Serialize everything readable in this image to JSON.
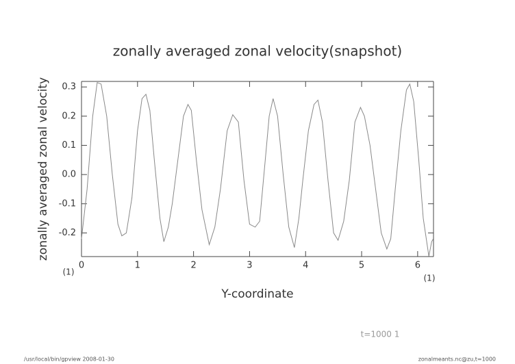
{
  "chart_data": {
    "type": "line",
    "title": "zonally averaged zonal velocity(snapshot)",
    "x_label": "Y-coordinate",
    "y_label": "zonally averaged zonal velocity",
    "x_unit_left": "(1)",
    "x_unit_right": "(1)",
    "annotation": "t=1000 1",
    "footer_left": "/usr/local/bin/gpview   2008-01-30",
    "footer_right": "zonalmeants.nc@zu,t=1000",
    "xlim": [
      0,
      6.283
    ],
    "ylim": [
      -0.281,
      0.319
    ],
    "xticks": [
      0,
      1,
      2,
      3,
      4,
      5,
      6
    ],
    "yticks": [
      -0.2,
      -0.1,
      {
        "value": 0,
        "label": "0.0"
      },
      0.1,
      0.2,
      0.3
    ],
    "series": [
      {
        "color": "#888888",
        "x": [
          0,
          0.1,
          0.2,
          0.28,
          0.35,
          0.45,
          0.55,
          0.65,
          0.72,
          0.8,
          0.9,
          1.0,
          1.08,
          1.15,
          1.22,
          1.3,
          1.4,
          1.47,
          1.55,
          1.62,
          1.72,
          1.82,
          1.9,
          1.96,
          2.05,
          2.15,
          2.28,
          2.38,
          2.48,
          2.6,
          2.7,
          2.8,
          2.9,
          3.0,
          3.1,
          3.18,
          3.28,
          3.35,
          3.42,
          3.5,
          3.6,
          3.7,
          3.8,
          3.88,
          3.95,
          4.05,
          4.15,
          4.22,
          4.3,
          4.4,
          4.5,
          4.58,
          4.68,
          4.78,
          4.88,
          4.98,
          5.05,
          5.15,
          5.25,
          5.35,
          5.45,
          5.52,
          5.6,
          5.7,
          5.8,
          5.86,
          5.93,
          6.02,
          6.1,
          6.2,
          6.25,
          6.28
        ],
        "values": [
          -0.22,
          -0.05,
          0.2,
          0.315,
          0.31,
          0.2,
          0.0,
          -0.17,
          -0.21,
          -0.2,
          -0.08,
          0.15,
          0.26,
          0.275,
          0.22,
          0.05,
          -0.15,
          -0.23,
          -0.18,
          -0.1,
          0.05,
          0.2,
          0.24,
          0.22,
          0.05,
          -0.12,
          -0.24,
          -0.18,
          -0.05,
          0.15,
          0.205,
          0.18,
          -0.02,
          -0.17,
          -0.18,
          -0.16,
          0.05,
          0.2,
          0.26,
          0.2,
          0.0,
          -0.18,
          -0.25,
          -0.15,
          -0.02,
          0.15,
          0.24,
          0.255,
          0.18,
          -0.02,
          -0.2,
          -0.225,
          -0.16,
          -0.02,
          0.18,
          0.23,
          0.2,
          0.1,
          -0.05,
          -0.2,
          -0.255,
          -0.22,
          -0.05,
          0.15,
          0.29,
          0.31,
          0.25,
          0.05,
          -0.15,
          -0.28,
          -0.23,
          -0.22
        ]
      }
    ]
  }
}
